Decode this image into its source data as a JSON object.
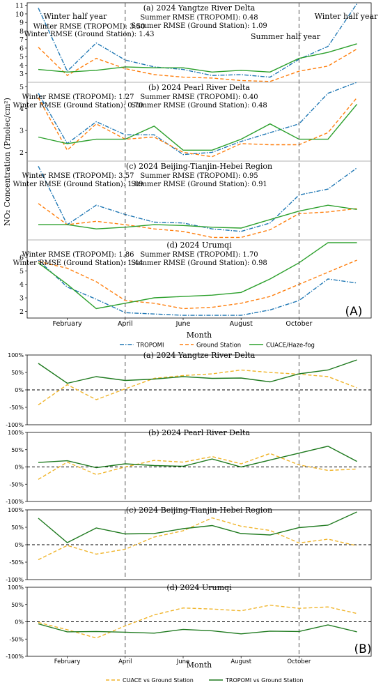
{
  "figure_a": {
    "tag": "(A)",
    "xlabel": "Month",
    "ylabel": "NO₂ Concentration (Pmolec/cm²)",
    "month_ticks": [
      {
        "label": "February",
        "x": 2
      },
      {
        "label": "April",
        "x": 4
      },
      {
        "label": "June",
        "x": 6
      },
      {
        "label": "August",
        "x": 8
      },
      {
        "label": "October",
        "x": 10
      }
    ],
    "vlines": [
      4,
      10
    ],
    "legend": [
      "TROPOMI",
      "Ground Station",
      "CUACE/Haze-fog"
    ],
    "colors": {
      "tropomi": "#1f77b4",
      "ground": "#ff7f0e",
      "cuace": "#2ca02c"
    },
    "half_year_labels": {
      "winter_left": "Winter half year",
      "summer": "Summer half year",
      "winter_right": "Winter half year"
    }
  },
  "figure_b": {
    "tag": "(B)",
    "xlabel": "Month",
    "month_ticks": [
      {
        "label": "February",
        "x": 2
      },
      {
        "label": "April",
        "x": 4
      },
      {
        "label": "June",
        "x": 6
      },
      {
        "label": "August",
        "x": 8
      },
      {
        "label": "October",
        "x": 10
      }
    ],
    "vlines": [
      4,
      10
    ],
    "ytick_labels": [
      "100%",
      "50%",
      "0%",
      "-50%",
      "-100%"
    ],
    "legend": [
      "CUACE vs Ground Station",
      "TROPOMI vs Ground Station"
    ],
    "colors": {
      "cuace_vs": "#f0b429",
      "tropomi_vs": "#1f7a1f"
    }
  },
  "chart_data": [
    {
      "type": "line",
      "title": "(a) 2024 Yangtze River Delta",
      "x": [
        1,
        2,
        3,
        4,
        5,
        6,
        7,
        8,
        9,
        10,
        11,
        12
      ],
      "ylim": [
        2,
        11.3
      ],
      "yticks": [
        2,
        3,
        4,
        5,
        6,
        7,
        8,
        9,
        10,
        11
      ],
      "annotations": [
        "Winter RMSE (TROPOMI): 3.50",
        "Winter RMSE (Ground Station): 1.43",
        "Summer RMSE (TROPOMI): 0.48",
        "Summer RMSE (Ground Station): 1.09"
      ],
      "series": [
        {
          "name": "TROPOMI",
          "values": [
            10.7,
            3.3,
            6.6,
            4.6,
            3.8,
            3.5,
            2.8,
            2.9,
            2.6,
            4.7,
            6.2,
            11.2
          ]
        },
        {
          "name": "Ground Station",
          "values": [
            6.1,
            2.8,
            4.8,
            3.6,
            2.9,
            2.6,
            2.5,
            2.2,
            2.1,
            3.3,
            3.9,
            5.9
          ]
        },
        {
          "name": "CUACE/Haze-fog",
          "values": [
            3.5,
            3.2,
            3.4,
            3.8,
            3.7,
            3.7,
            3.2,
            3.4,
            3.2,
            4.8,
            5.5,
            6.5
          ]
        }
      ]
    },
    {
      "type": "line",
      "title": "(b) 2024 Pearl River Delta",
      "x": [
        1,
        2,
        3,
        4,
        5,
        6,
        7,
        8,
        9,
        10,
        11,
        12
      ],
      "ylim": [
        1.6,
        5.2
      ],
      "yticks": [
        2,
        3,
        4,
        5
      ],
      "annotations": [
        "Winter RMSE (TROPOMI): 1.27",
        "Winter RMSE (Ground Station): 0.70",
        "Summer RMSE (TROPOMI): 0.40",
        "Summer RMSE (Ground Station): 0.48"
      ],
      "series": [
        {
          "name": "TROPOMI",
          "values": [
            4.7,
            2.4,
            3.4,
            2.8,
            2.8,
            1.9,
            2.0,
            2.5,
            2.9,
            3.3,
            4.7,
            5.2
          ]
        },
        {
          "name": "Ground Station",
          "values": [
            4.5,
            2.1,
            3.3,
            2.6,
            2.7,
            2.0,
            1.8,
            2.4,
            2.35,
            2.35,
            2.9,
            4.5
          ]
        },
        {
          "name": "CUACE/Haze-fog",
          "values": [
            2.7,
            2.4,
            2.6,
            2.6,
            3.2,
            2.1,
            2.1,
            2.6,
            3.3,
            2.6,
            2.6,
            4.2
          ]
        }
      ]
    },
    {
      "type": "line",
      "title": "(c) 2024 Beijing-Tianjin-Hebei Region",
      "x": [
        1,
        2,
        3,
        4,
        5,
        6,
        7,
        8,
        9,
        10,
        11,
        12
      ],
      "ylim": [
        1.5,
        10.8
      ],
      "yticks": [],
      "annotations": [
        "Winter RMSE (TROPOMI): 3.57",
        "Winter RMSE (Ground Station): 1.09",
        "Summer RMSE (TROPOMI): 0.95",
        "Summer RMSE (Ground Station): 0.91"
      ],
      "series": [
        {
          "name": "TROPOMI",
          "values": [
            10.2,
            3.3,
            5.6,
            4.5,
            3.6,
            3.5,
            2.8,
            2.5,
            3.5,
            6.8,
            7.5,
            10.0
          ]
        },
        {
          "name": "Ground Station",
          "values": [
            5.8,
            3.3,
            3.7,
            3.3,
            2.8,
            2.5,
            1.8,
            1.8,
            2.7,
            4.6,
            4.8,
            5.2
          ]
        },
        {
          "name": "CUACE/Haze-fog",
          "values": [
            3.3,
            3.3,
            2.8,
            3.0,
            3.3,
            3.2,
            3.0,
            2.9,
            3.9,
            4.9,
            5.6,
            5.1
          ]
        }
      ]
    },
    {
      "type": "line",
      "title": "(d) 2024 Urumqi",
      "x": [
        1,
        2,
        3,
        4,
        5,
        6,
        7,
        8,
        9,
        10,
        11,
        12
      ],
      "ylim": [
        1.5,
        7.3
      ],
      "yticks": [
        2,
        3,
        4,
        5,
        6
      ],
      "annotations": [
        "Winter RMSE (TROPOMI): 1.86",
        "Winter RMSE (Ground Station): 1.44",
        "Summer RMSE (TROPOMI): 1.70",
        "Summer RMSE (Ground Station): 0.98"
      ],
      "series": [
        {
          "name": "TROPOMI",
          "values": [
            5.8,
            3.8,
            2.9,
            1.9,
            1.8,
            1.7,
            1.7,
            1.7,
            2.1,
            2.8,
            4.4,
            4.1
          ]
        },
        {
          "name": "Ground Station",
          "values": [
            5.7,
            5.2,
            4.2,
            2.8,
            2.6,
            2.2,
            2.3,
            2.6,
            3.1,
            4.0,
            4.9,
            5.8
          ]
        },
        {
          "name": "CUACE/Haze-fog",
          "values": [
            5.6,
            4.0,
            2.2,
            2.6,
            3.0,
            3.1,
            3.2,
            3.4,
            4.4,
            5.6,
            7.1,
            7.1
          ]
        }
      ]
    },
    {
      "type": "line",
      "title": "(a) 2024 Yangtze River Delta",
      "x": [
        1,
        2,
        3,
        4,
        5,
        6,
        7,
        8,
        9,
        10,
        11,
        12
      ],
      "ylim": [
        -100,
        100
      ],
      "series": [
        {
          "name": "CUACE vs Ground Station",
          "values": [
            -43,
            15,
            -28,
            3,
            33,
            41,
            46,
            57,
            50,
            45,
            38,
            6
          ]
        },
        {
          "name": "TROPOMI vs Ground Station",
          "values": [
            76,
            19,
            38,
            27,
            31,
            38,
            33,
            34,
            23,
            46,
            57,
            86
          ]
        }
      ]
    },
    {
      "type": "line",
      "title": "(b) 2024 Pearl River Delta",
      "x": [
        1,
        2,
        3,
        4,
        5,
        6,
        7,
        8,
        9,
        10,
        11,
        12
      ],
      "ylim": [
        -100,
        100
      ],
      "series": [
        {
          "name": "CUACE vs Ground Station",
          "values": [
            -36,
            14,
            -22,
            0,
            19,
            14,
            30,
            9,
            39,
            6,
            -10,
            -6
          ]
        },
        {
          "name": "TROPOMI vs Ground Station",
          "values": [
            13,
            18,
            -2,
            9,
            4,
            2,
            23,
            0,
            20,
            40,
            60,
            16
          ]
        }
      ]
    },
    {
      "type": "line",
      "title": "(c) 2024 Beijing-Tianjin-Hebei Region",
      "x": [
        1,
        2,
        3,
        4,
        5,
        6,
        7,
        8,
        9,
        10,
        11,
        12
      ],
      "ylim": [
        -100,
        100
      ],
      "series": [
        {
          "name": "CUACE vs Ground Station",
          "values": [
            -43,
            -2,
            -27,
            -13,
            22,
            40,
            77,
            53,
            41,
            5,
            16,
            -3
          ]
        },
        {
          "name": "TROPOMI vs Ground Station",
          "values": [
            76,
            6,
            48,
            31,
            32,
            46,
            55,
            32,
            28,
            49,
            56,
            94
          ]
        }
      ]
    },
    {
      "type": "line",
      "title": "(d) 2024 Urumqi",
      "x": [
        1,
        2,
        3,
        4,
        5,
        6,
        7,
        8,
        9,
        10,
        11,
        12
      ],
      "ylim": [
        -100,
        100
      ],
      "series": [
        {
          "name": "CUACE vs Ground Station",
          "values": [
            -2,
            -23,
            -47,
            -12,
            20,
            40,
            37,
            32,
            48,
            39,
            43,
            24
          ]
        },
        {
          "name": "TROPOMI vs Ground Station",
          "values": [
            -6,
            -29,
            -28,
            -30,
            -33,
            -22,
            -26,
            -35,
            -27,
            -28,
            -9,
            -29
          ]
        }
      ]
    }
  ]
}
